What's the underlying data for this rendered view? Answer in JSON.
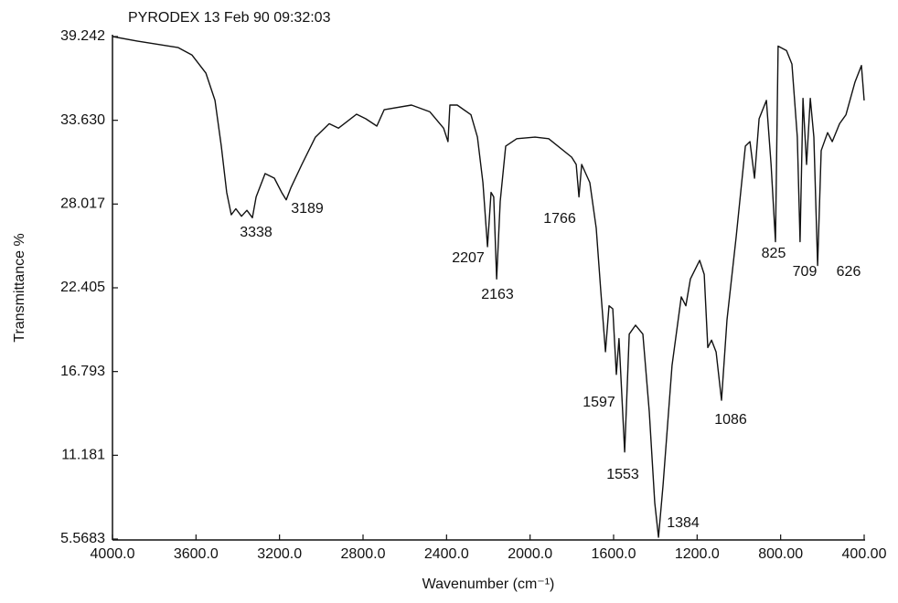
{
  "chart_data": {
    "type": "line",
    "title": "PYRODEX 13 Feb 90 09:32:03",
    "x_label": "Wavenumber (cm⁻¹)",
    "y_label": "Transmittance %",
    "color": "#111111",
    "xlim": [
      4000,
      400
    ],
    "ylim": [
      5.5683,
      39.242
    ],
    "xticks": [
      {
        "value": 4000,
        "label": "4000.0"
      },
      {
        "value": 3600,
        "label": "3600.0"
      },
      {
        "value": 3200,
        "label": "3200.0"
      },
      {
        "value": 2800,
        "label": "2800.0"
      },
      {
        "value": 2400,
        "label": "2400.0"
      },
      {
        "value": 2000,
        "label": "2000.0"
      },
      {
        "value": 1600,
        "label": "1600.0"
      },
      {
        "value": 1200,
        "label": "1200.0"
      },
      {
        "value": 800,
        "label": "800.00"
      },
      {
        "value": 400,
        "label": "400.00"
      }
    ],
    "yticks": [
      5.5683,
      11.181,
      16.793,
      22.405,
      28.017,
      {
        "value": 33.63,
        "label": "33.630"
      },
      39.242
    ],
    "annotations": [
      "3338",
      "3189",
      "2207",
      "2163",
      "1766",
      "1597",
      "1553",
      "1384",
      "1086",
      "825",
      "709",
      "626"
    ],
    "x": [
      4000,
      3882,
      3685,
      3619,
      3553,
      3509,
      3479,
      3453,
      3431,
      3409,
      3382,
      3356,
      3330,
      3312,
      3269,
      3225,
      3190,
      3168,
      3146,
      3093,
      3028,
      2962,
      2918,
      2831,
      2787,
      2734,
      2699,
      2568,
      2480,
      2414,
      2393,
      2384,
      2349,
      2283,
      2252,
      2226,
      2204,
      2187,
      2174,
      2160,
      2143,
      2117,
      2064,
      1976,
      1911,
      1801,
      1779,
      1766,
      1753,
      1714,
      1683,
      1661,
      1639,
      1622,
      1604,
      1587,
      1574,
      1547,
      1525,
      1495,
      1460,
      1429,
      1403,
      1385,
      1363,
      1320,
      1276,
      1254,
      1232,
      1188,
      1166,
      1149,
      1131,
      1109,
      1083,
      1057,
      1013,
      969,
      947,
      925,
      903,
      868,
      846,
      825,
      812,
      772,
      746,
      720,
      707,
      693,
      676,
      658,
      641,
      623,
      606,
      575,
      553,
      518,
      487,
      444,
      413,
      400
    ],
    "values": [
      39.24,
      38.94,
      38.5,
      38.0,
      36.8,
      34.96,
      31.9,
      28.8,
      27.3,
      27.7,
      27.2,
      27.6,
      27.1,
      28.5,
      30.06,
      29.75,
      28.8,
      28.3,
      29.1,
      30.67,
      32.5,
      33.4,
      33.1,
      34.04,
      33.73,
      33.24,
      34.34,
      34.65,
      34.2,
      33.1,
      32.2,
      34.65,
      34.65,
      34.0,
      32.5,
      29.45,
      25.16,
      28.8,
      28.5,
      23.0,
      28.2,
      31.9,
      32.4,
      32.5,
      32.4,
      31.16,
      30.67,
      28.5,
      30.67,
      29.45,
      26.4,
      22.1,
      18.12,
      21.2,
      21.0,
      16.6,
      19.0,
      11.4,
      19.3,
      19.9,
      19.3,
      14.1,
      8.0,
      5.69,
      9.2,
      17.2,
      21.8,
      21.2,
      23.0,
      24.24,
      23.3,
      18.4,
      18.9,
      18.1,
      14.87,
      20.26,
      25.8,
      31.9,
      32.2,
      29.75,
      33.73,
      34.96,
      30.67,
      25.5,
      38.6,
      38.3,
      37.4,
      32.5,
      25.5,
      35.1,
      30.67,
      35.1,
      32.5,
      23.9,
      31.6,
      32.8,
      32.2,
      33.4,
      34.0,
      36.2,
      37.3,
      34.96
    ]
  }
}
